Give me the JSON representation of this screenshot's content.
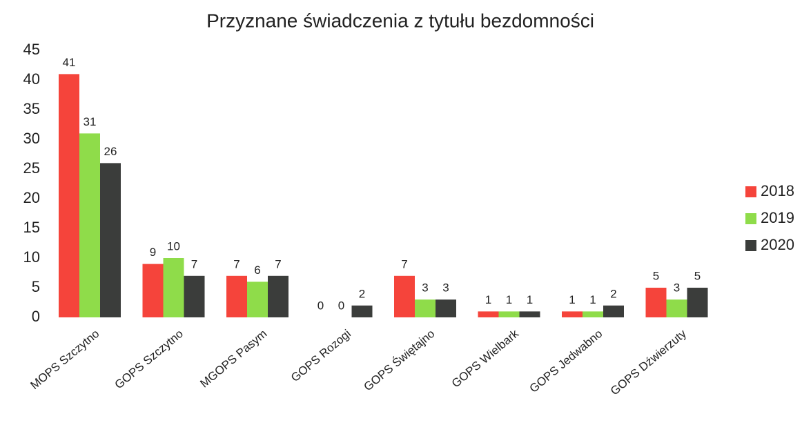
{
  "chart_data": {
    "type": "bar",
    "title": "Przyznane świadczenia z tytułu bezdomności",
    "categories": [
      "MOPS Szczytno",
      "GOPS Szczytno",
      "MGOPS Pasym",
      "GOPS Rozogi",
      "GOPS Świętajno",
      "GOPS Wielbark",
      "GOPS Jedwabno",
      "GOPS Dźwierzuty"
    ],
    "series": [
      {
        "name": "2018",
        "color": "#f5443b",
        "values": [
          41,
          9,
          7,
          0,
          7,
          1,
          1,
          5
        ]
      },
      {
        "name": "2019",
        "color": "#8fdc4a",
        "values": [
          31,
          10,
          6,
          0,
          3,
          1,
          1,
          3
        ]
      },
      {
        "name": "2020",
        "color": "#3b3d3b",
        "values": [
          26,
          7,
          7,
          2,
          3,
          1,
          2,
          5
        ]
      }
    ],
    "ylim": [
      0,
      45
    ],
    "yticks": [
      0,
      5,
      10,
      15,
      20,
      25,
      30,
      35,
      40,
      45
    ],
    "grid": false,
    "legend": "right"
  }
}
